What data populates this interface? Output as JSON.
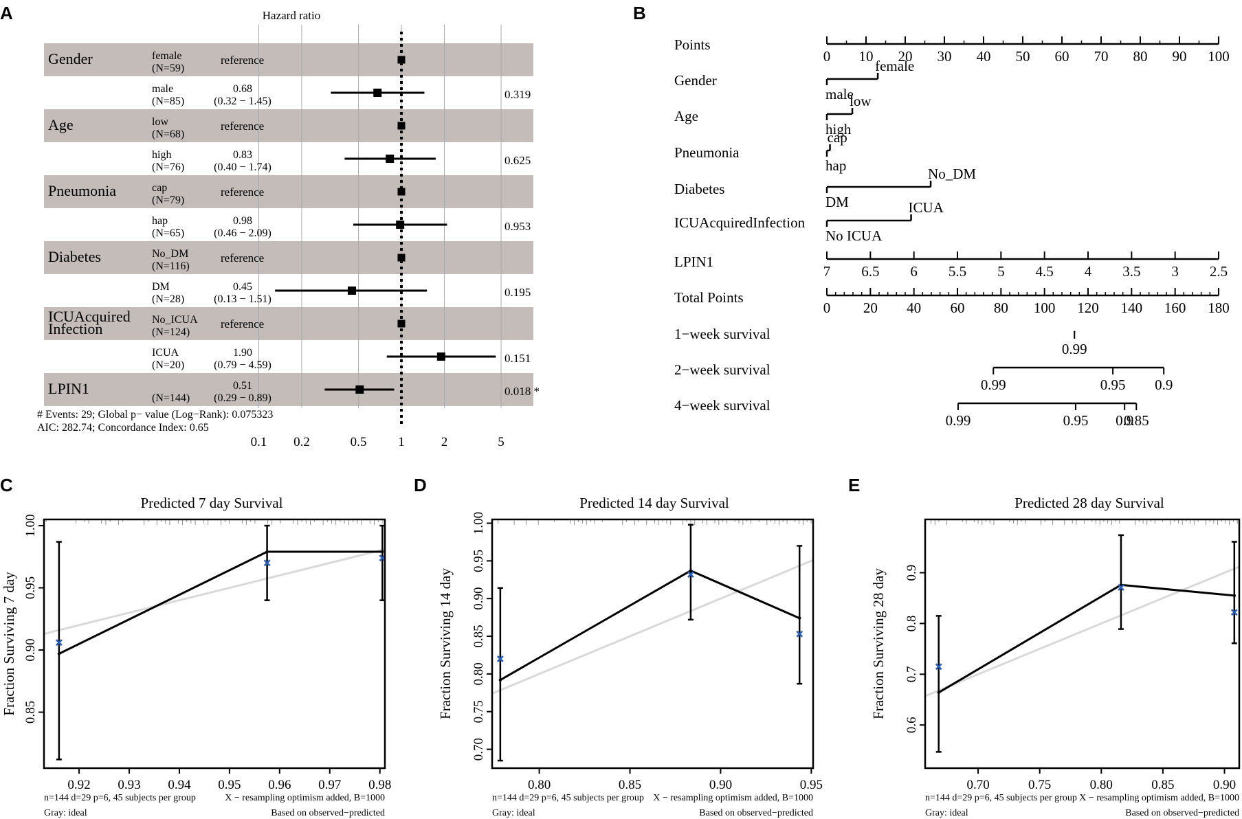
{
  "panel_labels": [
    "A",
    "B",
    "C",
    "D",
    "E"
  ],
  "chart_data": [
    {
      "panel": "A",
      "type": "forest",
      "title": "Hazard ratio",
      "x_scale": "log",
      "x_ticks": [
        0.1,
        0.2,
        0.5,
        1,
        2,
        5
      ],
      "x_tick_labels": [
        "0.1",
        "0.2",
        "0.5",
        "1",
        "2",
        "5"
      ],
      "rows": [
        {
          "variable": "Gender",
          "level": "female",
          "n": "(N=59)",
          "hr_text": "reference",
          "ci_text": "",
          "p_text": "",
          "hr": 1,
          "lo": null,
          "hi": null,
          "shade": true
        },
        {
          "variable": "",
          "level": "male",
          "n": "(N=85)",
          "hr_text": "0.68",
          "ci_text": "(0.32 − 1.45)",
          "p_text": "0.319",
          "hr": 0.68,
          "lo": 0.32,
          "hi": 1.45,
          "shade": false
        },
        {
          "variable": "Age",
          "level": "low",
          "n": "(N=68)",
          "hr_text": "reference",
          "ci_text": "",
          "p_text": "",
          "hr": 1,
          "lo": null,
          "hi": null,
          "shade": true
        },
        {
          "variable": "",
          "level": "high",
          "n": "(N=76)",
          "hr_text": "0.83",
          "ci_text": "(0.40 − 1.74)",
          "p_text": "0.625",
          "hr": 0.83,
          "lo": 0.4,
          "hi": 1.74,
          "shade": false
        },
        {
          "variable": "Pneumonia",
          "level": "cap",
          "n": "(N=79)",
          "hr_text": "reference",
          "ci_text": "",
          "p_text": "",
          "hr": 1,
          "lo": null,
          "hi": null,
          "shade": true
        },
        {
          "variable": "",
          "level": "hap",
          "n": "(N=65)",
          "hr_text": "0.98",
          "ci_text": "(0.46 − 2.09)",
          "p_text": "0.953",
          "hr": 0.98,
          "lo": 0.46,
          "hi": 2.09,
          "shade": false
        },
        {
          "variable": "Diabetes",
          "level": "No_DM",
          "n": "(N=116)",
          "hr_text": "reference",
          "ci_text": "",
          "p_text": "",
          "hr": 1,
          "lo": null,
          "hi": null,
          "shade": true
        },
        {
          "variable": "",
          "level": "DM",
          "n": "(N=28)",
          "hr_text": "0.45",
          "ci_text": "(0.13 − 1.51)",
          "p_text": "0.195",
          "hr": 0.45,
          "lo": 0.13,
          "hi": 1.51,
          "shade": false
        },
        {
          "variable": "ICUAcquired\nInfection",
          "level": "No_ICUA",
          "n": "(N=124)",
          "hr_text": "reference",
          "ci_text": "",
          "p_text": "",
          "hr": 1,
          "lo": null,
          "hi": null,
          "shade": true
        },
        {
          "variable": "",
          "level": "ICUA",
          "n": "(N=20)",
          "hr_text": "1.90",
          "ci_text": "(0.79 − 4.59)",
          "p_text": "0.151",
          "hr": 1.9,
          "lo": 0.79,
          "hi": 4.59,
          "shade": false
        },
        {
          "variable": "LPIN1",
          "level": "",
          "n": "(N=144)",
          "hr_text": "0.51",
          "ci_text": "(0.29 − 0.89)",
          "p_text": "0.018 *",
          "hr": 0.51,
          "lo": 0.29,
          "hi": 0.89,
          "shade": true
        }
      ],
      "footer": [
        "# Events: 29; Global p− value (Log−Rank): 0.075323",
        "AIC: 282.74; Concordance Index: 0.65"
      ]
    },
    {
      "panel": "B",
      "type": "nomogram",
      "rows": [
        {
          "label": "Points",
          "kind": "axis",
          "range": [
            0,
            100
          ],
          "ticks": [
            "0",
            "10",
            "20",
            "30",
            "40",
            "50",
            "60",
            "70",
            "80",
            "90",
            "100"
          ],
          "minor": 1
        },
        {
          "label": "Gender",
          "kind": "bracket",
          "range": [
            0,
            13
          ],
          "top_text": "female",
          "bottom_text": "male"
        },
        {
          "label": "Age",
          "kind": "bracket",
          "range": [
            0,
            6.5
          ],
          "top_text": "low",
          "bottom_text": "high"
        },
        {
          "label": "Pneumonia",
          "kind": "bracket",
          "range": [
            0,
            0.8
          ],
          "top_text": "cap",
          "bottom_text": "hap"
        },
        {
          "label": "Diabetes",
          "kind": "bracket",
          "range": [
            0,
            26.5
          ],
          "top_text": "No_DM",
          "bottom_text": "DM"
        },
        {
          "label": "ICUAcquiredInfection",
          "kind": "bracket",
          "range": [
            0,
            21.5
          ],
          "top_text": "ICUA",
          "bottom_text": "No ICUA"
        },
        {
          "label": "LPIN1",
          "kind": "axis",
          "range": [
            0,
            100
          ],
          "ticks": [
            "7",
            "6.5",
            "6",
            "5.5",
            "5",
            "4.5",
            "4",
            "3.5",
            "3",
            "2.5"
          ],
          "minor": 0
        },
        {
          "label": "Total Points",
          "kind": "axis",
          "range": [
            0,
            100
          ],
          "ticks": [
            "0",
            "20",
            "40",
            "60",
            "80",
            "100",
            "120",
            "140",
            "160",
            "180"
          ],
          "minor": 4
        },
        {
          "label": "1−week survival",
          "kind": "scale",
          "range": [
            63,
            63.4
          ],
          "tick_values": [
            63.2
          ],
          "ticks": [
            "0.99"
          ]
        },
        {
          "label": "2−week survival",
          "kind": "scale",
          "range": [
            42.5,
            86
          ],
          "tick_values": [
            42.5,
            73,
            86
          ],
          "ticks": [
            "0.99",
            "0.95",
            "0.9"
          ]
        },
        {
          "label": "4−week survival",
          "kind": "scale",
          "range": [
            33.5,
            79
          ],
          "tick_values": [
            33.5,
            63.5,
            76,
            79
          ],
          "ticks": [
            "0.99",
            "0.95",
            "0.9",
            "0.85"
          ]
        }
      ]
    },
    {
      "panel": "C",
      "type": "calibration",
      "title": "Predicted  7 day Survival",
      "ylabel": "Fraction Surviving 7 day",
      "xlim": [
        0.913,
        0.981
      ],
      "ylim": [
        0.805,
        1.005
      ],
      "x_ticks": [
        0.92,
        0.93,
        0.94,
        0.95,
        0.96,
        0.97,
        0.98
      ],
      "x_tick_labels": [
        "0.92",
        "0.93",
        "0.94",
        "0.95",
        "0.96",
        "0.97",
        "0.98"
      ],
      "y_ticks": [
        0.85,
        0.9,
        0.95,
        1.0
      ],
      "y_tick_labels": [
        "0.85",
        "0.90",
        "0.95",
        "1.00"
      ],
      "ideal": [
        [
          0.913,
          0.913
        ],
        [
          0.981,
          0.981
        ]
      ],
      "observed_x": [
        0.916,
        0.9575,
        0.9805
      ],
      "observed_y": [
        0.897,
        0.979,
        0.979
      ],
      "ci_lo": [
        0.812,
        0.94,
        0.94
      ],
      "ci_hi": [
        0.987,
        1.0,
        1.0
      ],
      "corrected_y": [
        0.906,
        0.97,
        0.974
      ],
      "footnotes": [
        "n=144 d=29 p=6, 45 subjects per group",
        "X − resampling optimism added, B=1000",
        "Gray: ideal",
        "Based on observed−predicted"
      ]
    },
    {
      "panel": "D",
      "type": "calibration",
      "title": "Predicted  14 day Survival",
      "ylabel": "Fraction Surviving 14 day",
      "xlim": [
        0.774,
        0.951
      ],
      "ylim": [
        0.675,
        1.005
      ],
      "x_ticks": [
        0.8,
        0.85,
        0.9,
        0.95
      ],
      "x_tick_labels": [
        "0.80",
        "0.85",
        "0.90",
        "0.95"
      ],
      "y_ticks": [
        0.7,
        0.75,
        0.8,
        0.85,
        0.9,
        0.95,
        1.0
      ],
      "y_tick_labels": [
        "0.70",
        "0.75",
        "0.80",
        "0.85",
        "0.90",
        "0.95",
        "1.00"
      ],
      "ideal": [
        [
          0.774,
          0.774
        ],
        [
          0.951,
          0.951
        ]
      ],
      "observed_x": [
        0.7785,
        0.8835,
        0.9435
      ],
      "observed_y": [
        0.792,
        0.937,
        0.874
      ],
      "ci_lo": [
        0.685,
        0.872,
        0.787
      ],
      "ci_hi": [
        0.914,
        0.998,
        0.97
      ],
      "corrected_y": [
        0.82,
        0.932,
        0.853
      ],
      "footnotes": [
        "n=144 d=29 p=6, 45 subjects per group",
        "X − resampling optimism added, B=1000",
        "Gray: ideal",
        "Based on observed−predicted"
      ]
    },
    {
      "panel": "E",
      "type": "calibration",
      "title": "Predicted  28 day Survival",
      "ylabel": "Fraction Surviving 28 day",
      "xlim": [
        0.657,
        0.912
      ],
      "ylim": [
        0.515,
        1.005
      ],
      "x_ticks": [
        0.7,
        0.75,
        0.8,
        0.85,
        0.9
      ],
      "x_tick_labels": [
        "0.70",
        "0.75",
        "0.80",
        "0.85",
        "0.90"
      ],
      "y_ticks": [
        0.6,
        0.7,
        0.8,
        0.9
      ],
      "y_tick_labels": [
        "0.6",
        "0.7",
        "0.8",
        "0.9"
      ],
      "ideal": [
        [
          0.657,
          0.657
        ],
        [
          0.912,
          0.912
        ]
      ],
      "observed_x": [
        0.668,
        0.816,
        0.908
      ],
      "observed_y": [
        0.664,
        0.876,
        0.855
      ],
      "ci_lo": [
        0.547,
        0.789,
        0.761
      ],
      "ci_hi": [
        0.815,
        0.974,
        0.961
      ],
      "corrected_y": [
        0.715,
        0.871,
        0.822
      ],
      "footnotes": [
        "n=144 d=29 p=6, 45 subjects per group",
        "X − resampling optimism added, B=1000",
        "Gray: ideal",
        "Based on observed−predicted"
      ]
    }
  ]
}
